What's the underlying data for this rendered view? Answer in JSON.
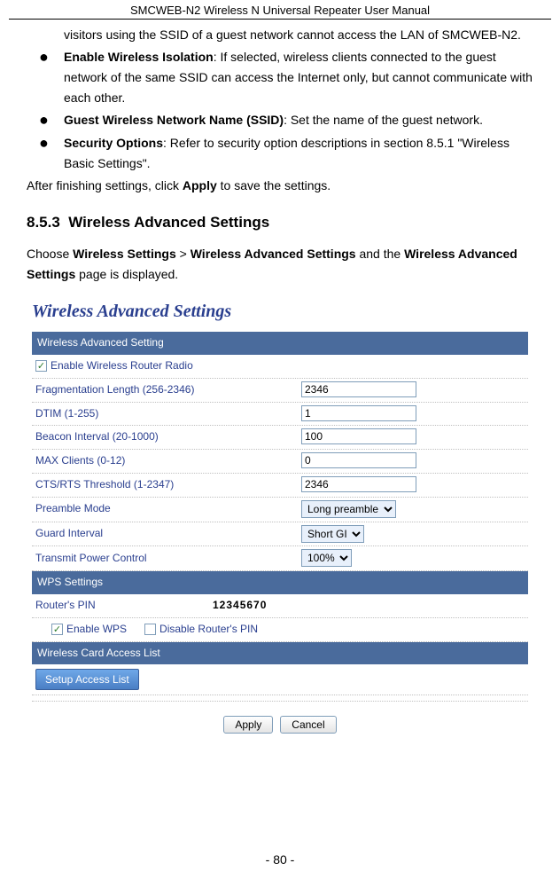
{
  "header": {
    "title": "SMCWEB-N2 Wireless N Universal Repeater User Manual"
  },
  "doc": {
    "cont_text": "visitors using the SSID of a guest network cannot access the LAN of SMCWEB-N2.",
    "bullets": [
      {
        "term": "Enable Wireless Isolation",
        "rest": ": If selected, wireless clients connected to the guest network of the same SSID can access the Internet only, but cannot communicate with each other."
      },
      {
        "term": "Guest Wireless Network Name (SSID)",
        "rest": ": Set the name of the guest network."
      },
      {
        "term": "Security Options",
        "rest": ": Refer to security option descriptions in section 8.5.1 \"Wireless Basic Settings\"."
      }
    ],
    "after_para_pre": "After finishing settings, click ",
    "after_para_bold": "Apply",
    "after_para_post": " to save the settings.",
    "section_num": "8.5.3",
    "section_title": "Wireless Advanced Settings",
    "nav_pre": "Choose ",
    "nav_b1": "Wireless Settings",
    "nav_mid1": " > ",
    "nav_b2": "Wireless Advanced Settings",
    "nav_mid2": " and the ",
    "nav_b3": "Wireless Advanced Settings",
    "nav_post": " page is displayed.",
    "page_num": "- 80 -"
  },
  "panel": {
    "title": "Wireless Advanced Settings",
    "section1": "Wireless Advanced Setting",
    "enable_radio": "Enable Wireless Router Radio",
    "rows": [
      {
        "label": "Fragmentation Length (256-2346)",
        "value": "2346"
      },
      {
        "label": "DTIM (1-255)",
        "value": "1"
      },
      {
        "label": "Beacon Interval (20-1000)",
        "value": "100"
      },
      {
        "label": "MAX Clients (0-12)",
        "value": "0"
      },
      {
        "label": "CTS/RTS Threshold (1-2347)",
        "value": "2346"
      }
    ],
    "preamble_label": "Preamble Mode",
    "preamble_value": "Long preamble",
    "guard_label": "Guard Interval",
    "guard_value": "Short GI",
    "power_label": "Transmit Power Control",
    "power_value": "100%",
    "section2": "WPS Settings",
    "wps_pin_label": "Router's PIN",
    "wps_pin_value": "12345670",
    "enable_wps": "Enable WPS",
    "disable_pin": "Disable Router's PIN",
    "section3": "Wireless Card Access List",
    "access_btn": "Setup Access List",
    "apply": "Apply",
    "cancel": "Cancel"
  },
  "colors": {
    "section_bar_bg": "#4a6b9c",
    "link_text": "#2a3f8f",
    "title_text": "#2a3f8f",
    "border_input": "#7f9db9"
  }
}
